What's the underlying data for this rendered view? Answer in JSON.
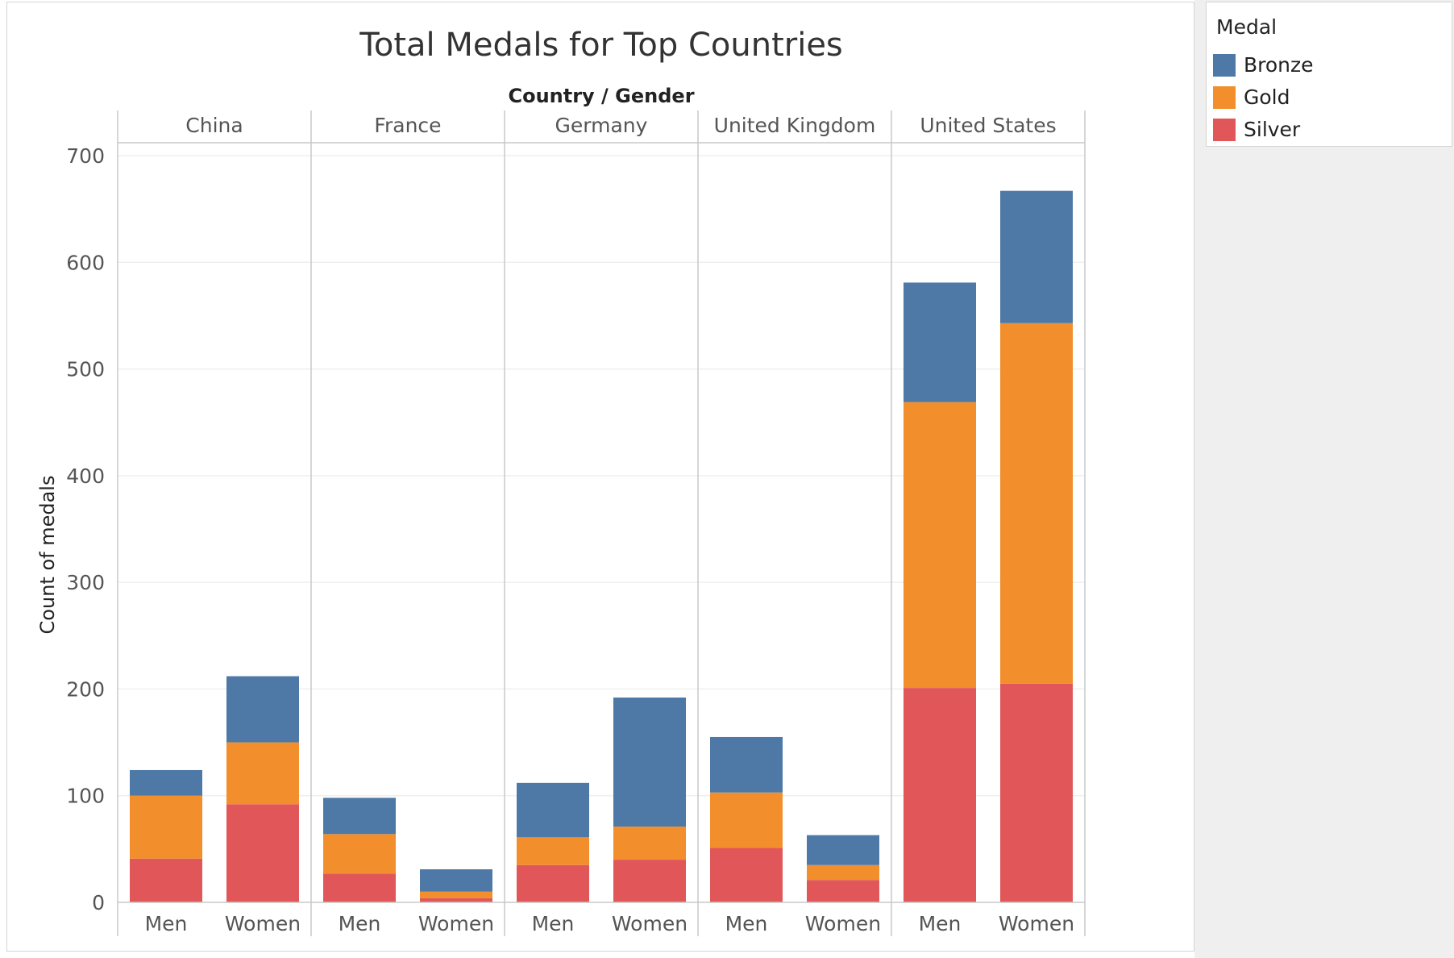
{
  "legend": {
    "title": "Medal",
    "items": [
      {
        "label": "Bronze",
        "color": "#4e79a7"
      },
      {
        "label": "Gold",
        "color": "#f28e2b"
      },
      {
        "label": "Silver",
        "color": "#e15759"
      }
    ]
  },
  "chart_data": {
    "type": "bar",
    "stacked": true,
    "title": "Total Medals for Top Countries",
    "header_label": "Country / Gender",
    "ylabel": "Count of medals",
    "ylim": [
      0,
      700
    ],
    "yticks": [
      0,
      100,
      200,
      300,
      400,
      500,
      600,
      700
    ],
    "grid": true,
    "legend_position": "top-right",
    "groups": [
      "China",
      "France",
      "Germany",
      "United Kingdom",
      "United States"
    ],
    "subcategories": [
      "Men",
      "Women"
    ],
    "series": [
      {
        "name": "Silver",
        "color": "#e15759",
        "values": [
          [
            41,
            92
          ],
          [
            27,
            4
          ],
          [
            35,
            40
          ],
          [
            51,
            21
          ],
          [
            201,
            205
          ]
        ]
      },
      {
        "name": "Gold",
        "color": "#f28e2b",
        "values": [
          [
            59,
            58
          ],
          [
            37,
            6
          ],
          [
            26,
            31
          ],
          [
            52,
            14
          ],
          [
            268,
            338
          ]
        ]
      },
      {
        "name": "Bronze",
        "color": "#4e79a7",
        "values": [
          [
            24,
            62
          ],
          [
            34,
            21
          ],
          [
            51,
            121
          ],
          [
            52,
            28
          ],
          [
            112,
            124
          ]
        ]
      }
    ]
  }
}
